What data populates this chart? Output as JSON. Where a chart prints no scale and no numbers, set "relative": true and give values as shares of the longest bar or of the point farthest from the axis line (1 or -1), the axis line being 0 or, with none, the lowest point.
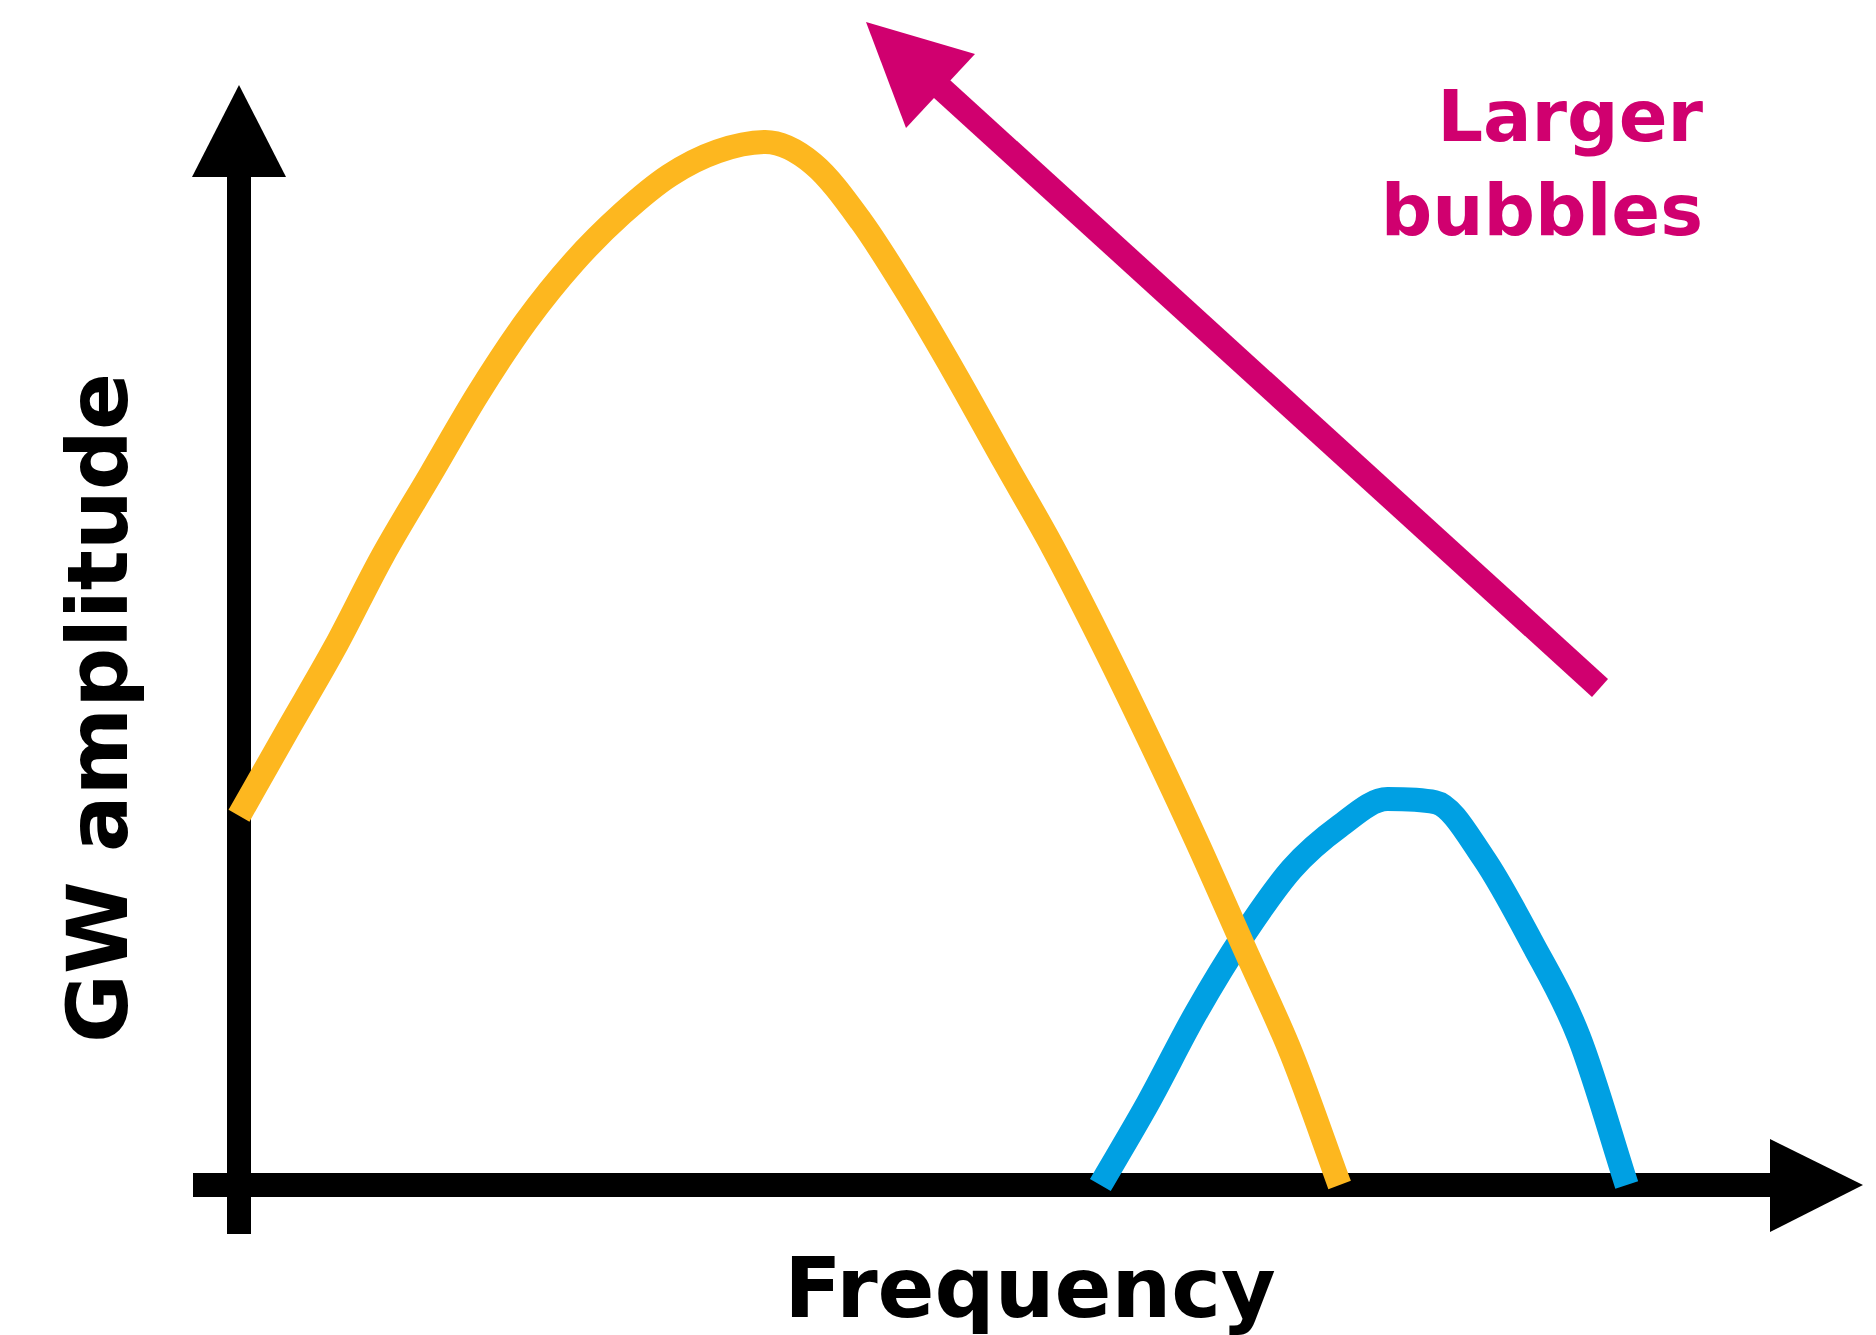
{
  "chart_data": {
    "type": "line",
    "relative": true,
    "tick_labels": false,
    "xlabel": "Frequency",
    "ylabel": "GW amplitude",
    "annotations": [
      "Larger bubbles"
    ],
    "categories": [
      null,
      null,
      null,
      null,
      null,
      null,
      null,
      null,
      null,
      null,
      null,
      null,
      null,
      null,
      null,
      null,
      null,
      null,
      null,
      null,
      null,
      null,
      null,
      null,
      null,
      null,
      null,
      null,
      null,
      null,
      null,
      null,
      null,
      null,
      null
    ],
    "series": [
      {
        "color": "#fdb71f",
        "values": [
          0.354,
          0.435,
          0.515,
          0.603,
          0.681,
          0.759,
          0.828,
          0.885,
          0.931,
          0.968,
          0.991,
          1,
          0.979,
          0.924,
          0.853,
          0.775,
          0.693,
          0.612,
          0.523,
          0.429,
          0.331,
          0.228,
          0.125,
          0,
          null,
          null,
          null,
          null,
          null,
          null,
          null,
          null,
          null,
          null,
          null
        ]
      },
      {
        "color": "#00a0e3",
        "values": [
          null,
          null,
          null,
          null,
          null,
          null,
          null,
          null,
          null,
          null,
          null,
          null,
          null,
          null,
          null,
          null,
          null,
          null,
          0,
          0.079,
          0.165,
          0.24,
          0.303,
          0.344,
          0.37,
          0.367,
          0.314,
          0.234,
          0.142,
          0,
          null,
          null,
          null,
          null,
          null
        ]
      }
    ]
  }
}
